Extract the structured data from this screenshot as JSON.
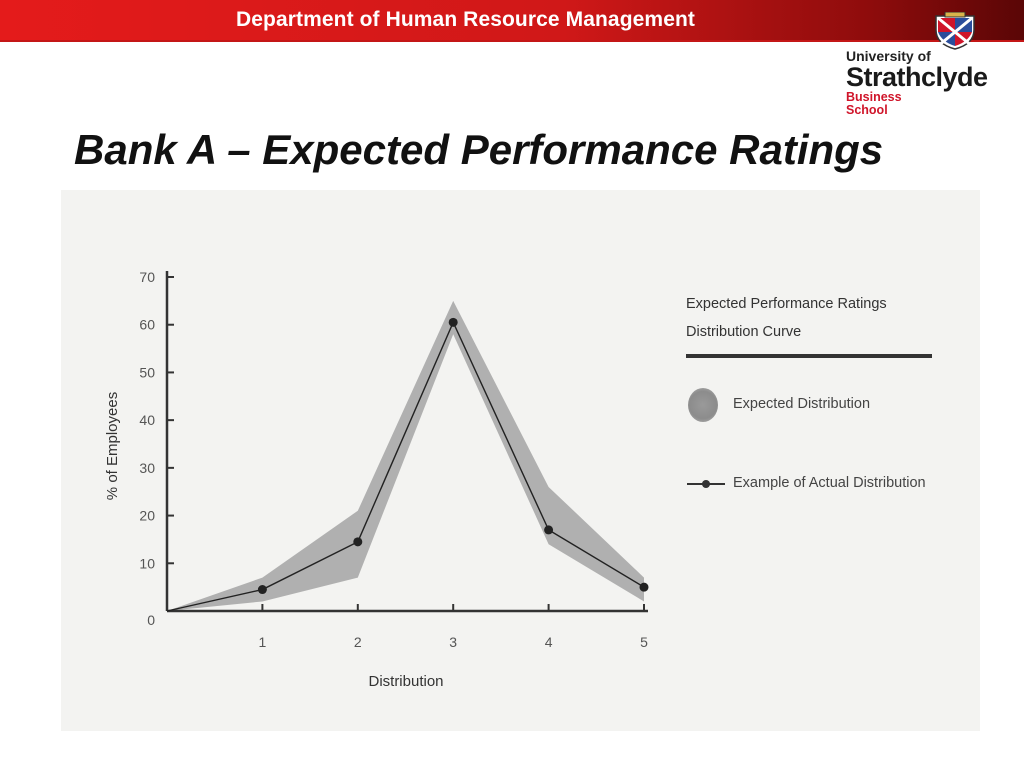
{
  "header": {
    "department": "Department of Human Resource Management",
    "accent_color": "#e41b1b"
  },
  "logo": {
    "line1": "University of",
    "line2": "Strathclyde",
    "line3": "Business",
    "line4": "School"
  },
  "slide": {
    "title": "Bank A – Expected Performance Ratings"
  },
  "chart_data": {
    "type": "line",
    "title": "Expected Performance Ratings Distribution Curve",
    "title_line1": "Expected Performance Ratings",
    "title_line2": "Distribution Curve",
    "xlabel": "Distribution",
    "ylabel": "% of Employees",
    "xlim": [
      0,
      5
    ],
    "ylim": [
      0,
      70
    ],
    "x_ticks": [
      1,
      2,
      3,
      4,
      5
    ],
    "y_ticks": [
      0,
      10,
      20,
      30,
      40,
      50,
      60,
      70
    ],
    "legend_position": "right",
    "grid": false,
    "series": [
      {
        "name": "Expected Distribution",
        "kind": "band",
        "x": [
          0,
          1,
          2,
          3,
          4,
          5
        ],
        "lower": [
          0,
          2,
          7,
          58,
          14,
          2
        ],
        "upper": [
          0,
          7,
          21,
          65,
          26,
          7
        ],
        "color": "#9a9a9a"
      },
      {
        "name": "Example of Actual Distribution",
        "kind": "line",
        "x": [
          0,
          1,
          2,
          3,
          4,
          5
        ],
        "y": [
          0,
          4.5,
          14.5,
          60.5,
          17,
          5
        ],
        "color": "#222222"
      }
    ]
  }
}
